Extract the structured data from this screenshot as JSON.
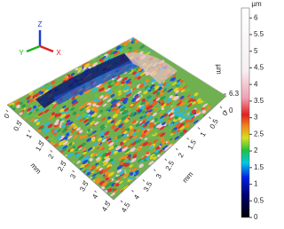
{
  "triad": {
    "x": "X",
    "y": "Y",
    "z": "Z"
  },
  "x_axis": {
    "label": "mm",
    "ticks": [
      0,
      0.5,
      1,
      1.5,
      2,
      2.5,
      3,
      3.5,
      4,
      4.5
    ]
  },
  "y_axis": {
    "label": "mm",
    "ticks": [
      0,
      0.5,
      1,
      1.5,
      2,
      2.5,
      3,
      3.5,
      4,
      4.5
    ]
  },
  "z_axis": {
    "label": "µm",
    "ticks": [
      0,
      6.3
    ]
  },
  "colorbar": {
    "label": "µm",
    "range": [
      0,
      6.3
    ],
    "ticks": [
      0,
      0.5,
      1,
      1.5,
      2,
      2.5,
      3,
      3.5,
      4,
      4.5,
      5,
      5.5,
      6
    ]
  }
}
